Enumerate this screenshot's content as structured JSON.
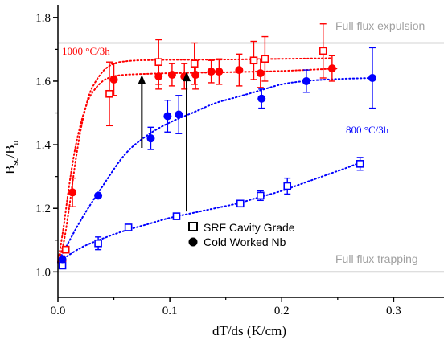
{
  "chart_data": {
    "type": "scatter",
    "xlabel": "dT/ds (K/cm)",
    "ylabel_main": "B",
    "ylabel_sub1": "sc",
    "ylabel_sep": "/B",
    "ylabel_sub2": "n",
    "xlim": [
      0,
      0.345
    ],
    "ylim": [
      0.92,
      1.84
    ],
    "xticks": [
      0.0,
      0.1,
      0.2,
      0.3
    ],
    "xtick_labels": [
      "0.0",
      "0.1",
      "0.2",
      "0.3"
    ],
    "yticks": [
      1.0,
      1.2,
      1.4,
      1.6,
      1.8
    ],
    "ytick_labels": [
      "1.0",
      "1.2",
      "1.4",
      "1.6",
      "1.8"
    ],
    "legend_position": "bottom-center",
    "reference_lines": [
      {
        "label": "Full flux expulsion",
        "y": 1.72
      },
      {
        "label": "Full flux trapping",
        "y": 1.0
      }
    ],
    "annotations": [
      {
        "text": "1000 °C/3h",
        "color": "#ff0000"
      },
      {
        "text": "800 °C/3h",
        "color": "#0000ff"
      }
    ],
    "arrows": [
      {
        "x": 0.075,
        "y_from": 1.39,
        "y_to": 1.615
      },
      {
        "x": 0.115,
        "y_from": 1.19,
        "y_to": 1.625
      }
    ],
    "series": [
      {
        "name": "SRF Cavity Grade",
        "marker": "open-square",
        "color": "#ff0000",
        "x": [
          0.003,
          0.007,
          0.046,
          0.09,
          0.122,
          0.175,
          0.185,
          0.237
        ],
        "y": [
          1.04,
          1.07,
          1.56,
          1.66,
          1.655,
          1.665,
          1.67,
          1.695
        ],
        "err": [
          0.0,
          0.0,
          0.1,
          0.07,
          0.065,
          0.06,
          0.07,
          0.085
        ]
      },
      {
        "name": "Cold Worked Nb",
        "marker": "filled-circle",
        "color": "#ff0000",
        "x": [
          0.004,
          0.013,
          0.05,
          0.09,
          0.102,
          0.113,
          0.123,
          0.137,
          0.144,
          0.162,
          0.181,
          0.245
        ],
        "y": [
          1.035,
          1.25,
          1.605,
          1.615,
          1.62,
          1.615,
          1.62,
          1.63,
          1.63,
          1.635,
          1.625,
          1.64
        ],
        "err": [
          0.0,
          0.045,
          0.05,
          0.04,
          0.035,
          0.04,
          0.045,
          0.035,
          0.04,
          0.05,
          0.045,
          0.04
        ]
      },
      {
        "name": "SRF Cavity Grade",
        "marker": "open-square",
        "color": "#0000ff",
        "x": [
          0.004,
          0.036,
          0.063,
          0.106,
          0.163,
          0.181,
          0.205,
          0.27
        ],
        "y": [
          1.02,
          1.09,
          1.14,
          1.175,
          1.215,
          1.24,
          1.27,
          1.34
        ],
        "err": [
          0.0,
          0.02,
          0.0,
          0.0,
          0.0,
          0.015,
          0.025,
          0.02
        ]
      },
      {
        "name": "Cold Worked Nb",
        "marker": "filled-circle",
        "color": "#0000ff",
        "x": [
          0.004,
          0.036,
          0.083,
          0.098,
          0.108,
          0.182,
          0.222,
          0.281
        ],
        "y": [
          1.04,
          1.24,
          1.42,
          1.49,
          1.495,
          1.545,
          1.6,
          1.61
        ],
        "err": [
          0.0,
          0.0,
          0.035,
          0.05,
          0.06,
          0.03,
          0.035,
          0.095
        ]
      }
    ],
    "fit_curves": [
      {
        "color": "#ff0000",
        "x": [
          0.0,
          0.005,
          0.01,
          0.015,
          0.02,
          0.025,
          0.03,
          0.04,
          0.05,
          0.06,
          0.07,
          0.08,
          0.1,
          0.15,
          0.2,
          0.245
        ],
        "y": [
          1.03,
          1.09,
          1.2,
          1.33,
          1.44,
          1.52,
          1.575,
          1.63,
          1.655,
          1.662,
          1.665,
          1.666,
          1.667,
          1.668,
          1.67,
          1.672
        ]
      },
      {
        "color": "#ff0000",
        "x": [
          0.0,
          0.005,
          0.01,
          0.015,
          0.02,
          0.025,
          0.03,
          0.04,
          0.05,
          0.06,
          0.08,
          0.1,
          0.15,
          0.2,
          0.25
        ],
        "y": [
          1.03,
          1.14,
          1.27,
          1.38,
          1.46,
          1.52,
          1.56,
          1.6,
          1.615,
          1.62,
          1.623,
          1.625,
          1.628,
          1.632,
          1.64
        ]
      },
      {
        "color": "#0000ff",
        "x": [
          0.0,
          0.02,
          0.04,
          0.06,
          0.08,
          0.1,
          0.12,
          0.14,
          0.16,
          0.18,
          0.2,
          0.22,
          0.24,
          0.26,
          0.28
        ],
        "y": [
          1.03,
          1.16,
          1.27,
          1.37,
          1.43,
          1.47,
          1.5,
          1.53,
          1.55,
          1.57,
          1.59,
          1.6,
          1.605,
          1.608,
          1.61
        ]
      },
      {
        "color": "#0000ff",
        "x": [
          0.0,
          0.02,
          0.04,
          0.06,
          0.08,
          0.1,
          0.12,
          0.14,
          0.16,
          0.18,
          0.2,
          0.22,
          0.24,
          0.26,
          0.27
        ],
        "y": [
          1.03,
          1.075,
          1.105,
          1.13,
          1.15,
          1.17,
          1.185,
          1.2,
          1.215,
          1.235,
          1.255,
          1.28,
          1.305,
          1.33,
          1.345
        ]
      }
    ]
  }
}
